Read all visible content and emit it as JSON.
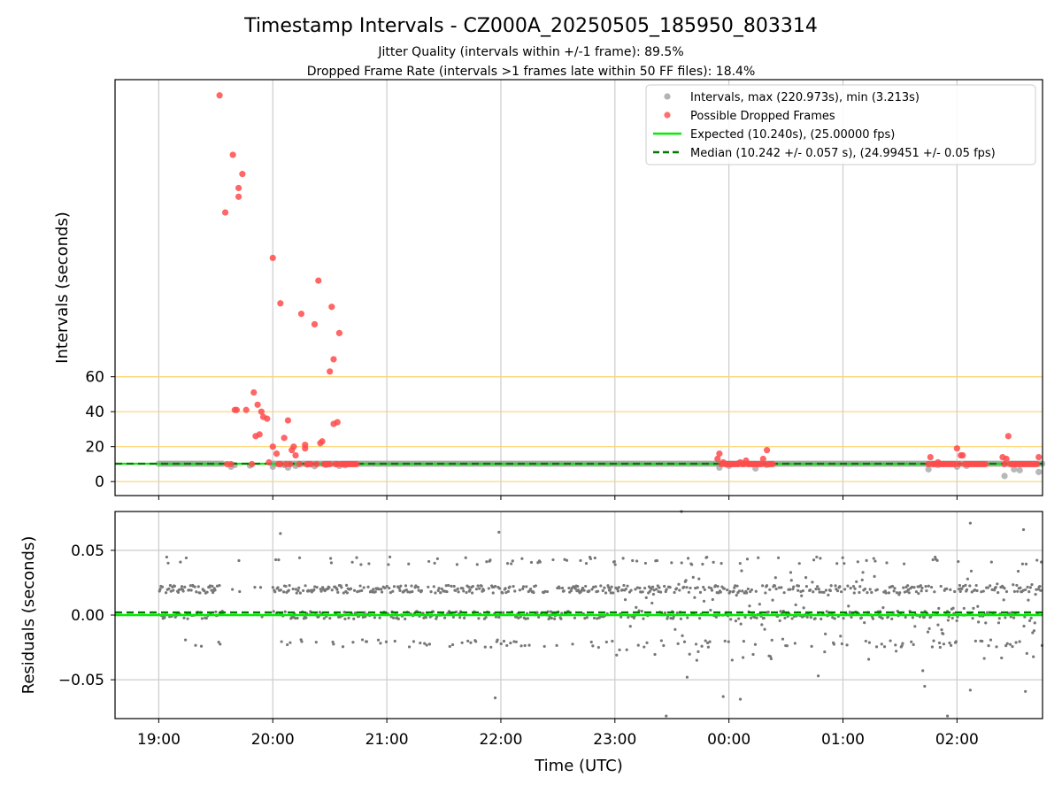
{
  "title": "Timestamp Intervals - CZ000A_20250505_185950_803314",
  "subtitle_1": "Jitter Quality (intervals within +/-1 frame): 89.5%",
  "subtitle_2": "Dropped Frame Rate (intervals >1 frames late within 50 FF files): 18.4%",
  "chart_data": [
    {
      "type": "scatter",
      "panel": "intervals",
      "ylabel": "Intervals (seconds)",
      "xlabel": "",
      "ylim": [
        -8,
        230
      ],
      "yticks": [
        0,
        20,
        40,
        60
      ],
      "ytick_labels": [
        "0",
        "20",
        "40",
        "60"
      ],
      "reference_lines": [
        0,
        20,
        40,
        60
      ],
      "reference_color": "#ffd36b",
      "grid": "x",
      "legend_position": "top-right",
      "legend": [
        {
          "label": "Intervals, max (220.973s), min (3.213s)",
          "kind": "dot",
          "color": "#a0a0a0"
        },
        {
          "label": "Possible Dropped Frames",
          "kind": "dot",
          "color": "#ff4b4b"
        },
        {
          "label": "Expected (10.240s), (25.00000 fps)",
          "kind": "line",
          "color": "#00ee00"
        },
        {
          "label": "Median (10.242 +/- 0.057 s), (24.99451 +/- 0.05 fps)",
          "kind": "dash",
          "color": "#007a00"
        }
      ],
      "expected": 10.24,
      "median": 10.242,
      "series": [
        {
          "name": "Intervals, max (220.973s), min (3.213s)",
          "color": "#a0a0a0",
          "x": [
            "19:38",
            "19:40",
            "19:48",
            "20:00",
            "20:06",
            "20:08",
            "20:12",
            "20:18",
            "20:22",
            "20:28",
            "20:35",
            "20:38",
            "23:55",
            "00:00",
            "00:05",
            "00:14",
            "00:20",
            "01:45",
            "01:50",
            "02:00",
            "02:05",
            "02:25",
            "02:30",
            "02:33",
            "02:43"
          ],
          "y": [
            8.5,
            9.5,
            9.2,
            8.5,
            9.5,
            8.0,
            9.0,
            9.8,
            8.8,
            9.5,
            9.0,
            9.3,
            8.0,
            9.0,
            10.5,
            7.5,
            9.5,
            7.0,
            9.5,
            8.5,
            9.0,
            3.2,
            7.0,
            6.5,
            5.5
          ]
        },
        {
          "name": "Possible Dropped Frames",
          "color": "#ff4b4b",
          "x": [
            "19:32",
            "19:35",
            "19:39",
            "19:42",
            "19:44",
            "19:42",
            "19:46",
            "19:49",
            "19:51",
            "19:53",
            "19:54",
            "19:50",
            "19:52",
            "19:55",
            "19:57",
            "19:58",
            "19:41",
            "19:40",
            "20:00",
            "20:00",
            "20:02",
            "20:04",
            "20:04",
            "20:06",
            "20:07",
            "20:08",
            "20:09",
            "20:10",
            "20:11",
            "20:12",
            "20:14",
            "20:15",
            "20:17",
            "20:17",
            "20:18",
            "20:19",
            "20:20",
            "20:22",
            "20:23",
            "20:24",
            "20:25",
            "20:26",
            "20:27",
            "20:28",
            "20:29",
            "20:30",
            "20:30",
            "20:31",
            "20:32",
            "20:32",
            "20:33",
            "20:34",
            "20:34",
            "20:35",
            "20:36",
            "20:37",
            "20:38",
            "20:39",
            "20:40",
            "20:41",
            "20:42",
            "20:43",
            "20:44",
            "19:38",
            "19:36",
            "20:03",
            "23:54",
            "23:55",
            "23:56",
            "23:57",
            "23:58",
            "23:59",
            "00:00",
            "00:01",
            "00:02",
            "00:03",
            "00:04",
            "00:05",
            "00:06",
            "00:07",
            "00:08",
            "00:09",
            "00:10",
            "00:11",
            "00:12",
            "00:13",
            "00:14",
            "00:15",
            "00:16",
            "00:17",
            "00:18",
            "00:19",
            "00:20",
            "00:21",
            "00:22",
            "00:23",
            "01:45",
            "01:46",
            "01:47",
            "01:48",
            "01:49",
            "01:50",
            "01:51",
            "01:52",
            "01:53",
            "01:54",
            "01:55",
            "01:56",
            "01:57",
            "01:58",
            "01:59",
            "02:00",
            "02:01",
            "02:02",
            "02:03",
            "02:04",
            "02:05",
            "02:06",
            "02:07",
            "02:08",
            "02:09",
            "02:10",
            "02:11",
            "02:12",
            "02:13",
            "02:14",
            "02:15",
            "02:24",
            "02:25",
            "02:26",
            "02:27",
            "02:28",
            "02:29",
            "02:30",
            "02:31",
            "02:32",
            "02:33",
            "02:34",
            "02:35",
            "02:36",
            "02:37",
            "02:38",
            "02:39",
            "02:40",
            "02:41",
            "02:42",
            "02:43"
          ],
          "y": [
            221,
            154,
            187,
            163,
            176,
            168,
            41,
            10,
            26,
            27,
            40,
            51,
            44,
            37,
            36,
            11,
            41,
            41,
            20,
            128,
            16,
            102,
            10,
            25,
            10,
            35,
            10,
            18,
            20,
            15,
            10,
            96,
            19,
            21,
            10,
            10,
            10,
            90,
            10,
            115,
            22,
            23,
            10,
            10,
            10,
            10,
            63,
            100,
            33,
            70,
            10,
            34,
            10,
            85,
            10,
            10,
            10,
            10,
            10,
            10,
            10,
            10,
            10,
            10,
            10,
            10,
            13,
            16,
            10,
            11,
            10,
            10,
            10,
            10,
            10,
            10,
            10,
            10,
            11,
            10,
            10,
            12,
            10,
            10,
            10,
            10,
            10,
            10,
            10,
            10,
            13,
            10,
            18,
            10,
            10,
            10,
            10,
            14,
            10,
            10,
            10,
            11,
            10,
            10,
            10,
            10,
            10,
            10,
            10,
            10,
            10,
            19,
            10,
            15,
            15,
            10,
            10,
            10,
            10,
            10,
            10,
            10,
            10,
            10,
            10,
            10,
            10,
            14,
            10,
            13,
            26,
            10,
            10,
            10,
            10,
            10,
            10,
            10,
            10,
            10,
            10,
            10,
            10,
            10,
            10,
            10,
            14
          ]
        }
      ]
    },
    {
      "type": "scatter",
      "panel": "residuals",
      "ylabel": "Residuals (seconds)",
      "xlabel": "Time (UTC)",
      "ylim": [
        -0.08,
        0.08
      ],
      "yticks": [
        0.05,
        0.0,
        -0.05
      ],
      "ytick_labels": [
        "0.05",
        "0.00",
        "−0.05"
      ],
      "xlim": [
        "18:37",
        "02:45"
      ],
      "xticks": [
        "19:00",
        "20:00",
        "21:00",
        "22:00",
        "23:00",
        "00:00",
        "01:00",
        "02:00"
      ],
      "xtick_labels": [
        "19:00",
        "20:00",
        "21:00",
        "22:00",
        "23:00",
        "00:00",
        "01:00",
        "02:00"
      ],
      "grid": "both",
      "expected": 0.0,
      "median": 0.002,
      "series": [
        {
          "name": "Residuals",
          "color": "#777777",
          "x_range": [
            "19:00",
            "02:45"
          ],
          "gap": [
            "19:34",
            "20:00"
          ],
          "bands": [
            0.02,
            0.0,
            -0.022,
            0.042
          ],
          "outliers": [
            {
              "x": "20:04",
              "y": 0.063
            },
            {
              "x": "21:59",
              "y": 0.064
            },
            {
              "x": "21:57",
              "y": -0.064
            },
            {
              "x": "23:35",
              "y": 0.08
            },
            {
              "x": "23:27",
              "y": -0.078
            },
            {
              "x": "23:38",
              "y": -0.048
            },
            {
              "x": "23:57",
              "y": -0.063
            },
            {
              "x": "00:06",
              "y": -0.065
            },
            {
              "x": "00:47",
              "y": -0.047
            },
            {
              "x": "01:42",
              "y": -0.043
            },
            {
              "x": "01:43",
              "y": -0.055
            },
            {
              "x": "01:55",
              "y": -0.078
            },
            {
              "x": "02:07",
              "y": 0.071
            },
            {
              "x": "02:07",
              "y": -0.058
            },
            {
              "x": "02:35",
              "y": 0.066
            },
            {
              "x": "02:36",
              "y": -0.059
            }
          ]
        }
      ]
    }
  ]
}
